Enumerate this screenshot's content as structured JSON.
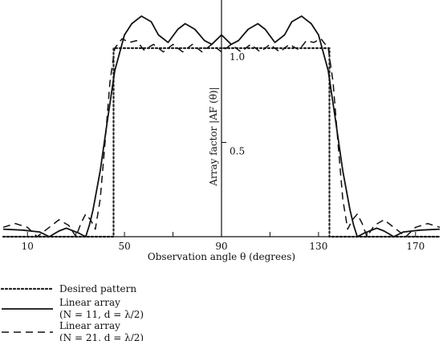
{
  "chart_data": {
    "type": "line",
    "title": "",
    "xlabel": "Observation angle θ (degrees)",
    "ylabel": "Array factor |AF (θ)|",
    "xlim": [
      0,
      180
    ],
    "ylim": [
      0,
      1.2
    ],
    "x_ticks": [
      10,
      50,
      90,
      130,
      170
    ],
    "y_ticks": [
      0.5,
      1.0
    ],
    "minor_x_ticks": [
      30,
      70,
      110,
      150
    ],
    "grid": false,
    "legend_position": "below",
    "series": [
      {
        "name": "Desired pattern",
        "line_style": "dotted",
        "color": "#222222",
        "x": [
          0,
          45.5,
          45.5,
          134.5,
          134.5,
          180
        ],
        "y": [
          0,
          0,
          1.0,
          1.0,
          0,
          0
        ]
      },
      {
        "name": "Linear array",
        "params": "(N = 11, d = λ/2)",
        "line_style": "solid",
        "color": "#111111",
        "x": [
          0,
          8,
          15,
          19,
          23,
          26,
          31,
          34,
          35.5,
          37,
          40,
          43,
          46,
          50,
          53,
          57,
          61,
          64,
          68,
          72,
          75,
          79,
          83,
          86,
          90,
          94,
          97,
          101,
          105,
          108,
          112,
          116,
          119,
          123,
          127,
          130,
          134,
          137,
          140,
          143,
          144.5,
          146,
          149,
          154,
          157,
          161,
          165,
          172,
          180
        ],
        "y": [
          0.04,
          0.035,
          0.025,
          0,
          0.03,
          0.045,
          0.02,
          0,
          0.06,
          0.14,
          0.35,
          0.62,
          0.88,
          1.07,
          1.13,
          1.17,
          1.14,
          1.07,
          1.03,
          1.1,
          1.13,
          1.1,
          1.04,
          1.02,
          1.07,
          1.02,
          1.04,
          1.1,
          1.13,
          1.1,
          1.03,
          1.07,
          1.14,
          1.17,
          1.13,
          1.07,
          0.88,
          0.62,
          0.35,
          0.14,
          0.06,
          0,
          0.02,
          0.045,
          0.03,
          0,
          0.025,
          0.035,
          0.04
        ]
      },
      {
        "name": "Linear array",
        "params": "(N = 21, d = λ/2)",
        "line_style": "dashed",
        "color": "#111111",
        "x": [
          0,
          5,
          10,
          14,
          19,
          23,
          27,
          30,
          32,
          34,
          36,
          38,
          40,
          42,
          44,
          46,
          49,
          52,
          55,
          58,
          62,
          66,
          70,
          74,
          78,
          82,
          86,
          90,
          94,
          98,
          102,
          106,
          110,
          114,
          118,
          122,
          125,
          128,
          131,
          134,
          136,
          138,
          140,
          142,
          144,
          146,
          148,
          150,
          153,
          157,
          161,
          166,
          170,
          175,
          180
        ],
        "y": [
          0.05,
          0.07,
          0.05,
          0,
          0.05,
          0.09,
          0.06,
          0,
          0.07,
          0.12,
          0.09,
          0.04,
          0.2,
          0.5,
          0.82,
          1.0,
          1.05,
          1.03,
          1.04,
          0.99,
          1.02,
          0.98,
          1.02,
          0.98,
          1.02,
          0.98,
          1.02,
          0.98,
          1.02,
          0.98,
          1.02,
          0.98,
          1.02,
          0.98,
          1.02,
          0.99,
          1.04,
          1.03,
          1.05,
          1.0,
          0.82,
          0.5,
          0.2,
          0.04,
          0.09,
          0.12,
          0.07,
          0,
          0.06,
          0.09,
          0.05,
          0,
          0.05,
          0.07,
          0.05
        ]
      }
    ]
  }
}
